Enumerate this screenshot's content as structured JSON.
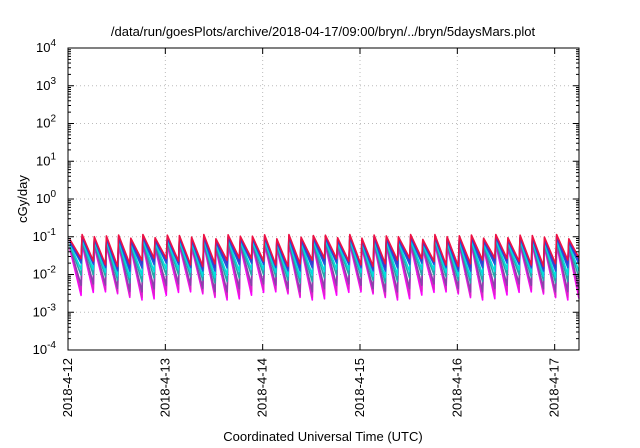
{
  "chart_data": {
    "type": "line",
    "title": "/data/run/goesPlots/archive/2018-04-17/09:00/bryn/../bryn/5daysMars.plot",
    "xlabel": "Coordinated Universal Time (UTC)",
    "ylabel": "cGy/day",
    "y_scale": "log",
    "ylim": [
      0.0001,
      10000
    ],
    "xlim_days": [
      "2018-04-12 00:00",
      "2018-04-17 06:00"
    ],
    "grid": true,
    "legend": "none",
    "x_ticks": [
      "2018-4-12",
      "2018-4-13",
      "2018-4-14",
      "2018-4-15",
      "2018-4-16",
      "2018-4-17"
    ],
    "y_ticks": [
      {
        "value": 0.0001,
        "base": "10",
        "exp": "-4"
      },
      {
        "value": 0.001,
        "base": "10",
        "exp": "-3"
      },
      {
        "value": 0.01,
        "base": "10",
        "exp": "-2"
      },
      {
        "value": 0.1,
        "base": "10",
        "exp": "-1"
      },
      {
        "value": 1,
        "base": "10",
        "exp": "0"
      },
      {
        "value": 10,
        "base": "10",
        "exp": "1"
      },
      {
        "value": 100,
        "base": "10",
        "exp": "2"
      },
      {
        "value": 1000,
        "base": "10",
        "exp": "3"
      },
      {
        "value": 10000,
        "base": "10",
        "exp": "4"
      }
    ],
    "cycle_hours": 3,
    "series": [
      {
        "color": "#ff00ff",
        "peak": 0.055,
        "trough": 0.0028
      },
      {
        "color": "#dd22cc",
        "peak": 0.06,
        "trough": 0.0033
      },
      {
        "color": "#8844aa",
        "peak": 0.065,
        "trough": 0.0045
      },
      {
        "color": "#22aaaa",
        "peak": 0.07,
        "trough": 0.008
      },
      {
        "color": "#00dddd",
        "peak": 0.075,
        "trough": 0.011
      },
      {
        "color": "#2255dd",
        "peak": 0.085,
        "trough": 0.016
      },
      {
        "color": "#4433cc",
        "peak": 0.09,
        "trough": 0.019
      },
      {
        "color": "#ee1144",
        "peak": 0.1,
        "trough": 0.022
      }
    ]
  }
}
